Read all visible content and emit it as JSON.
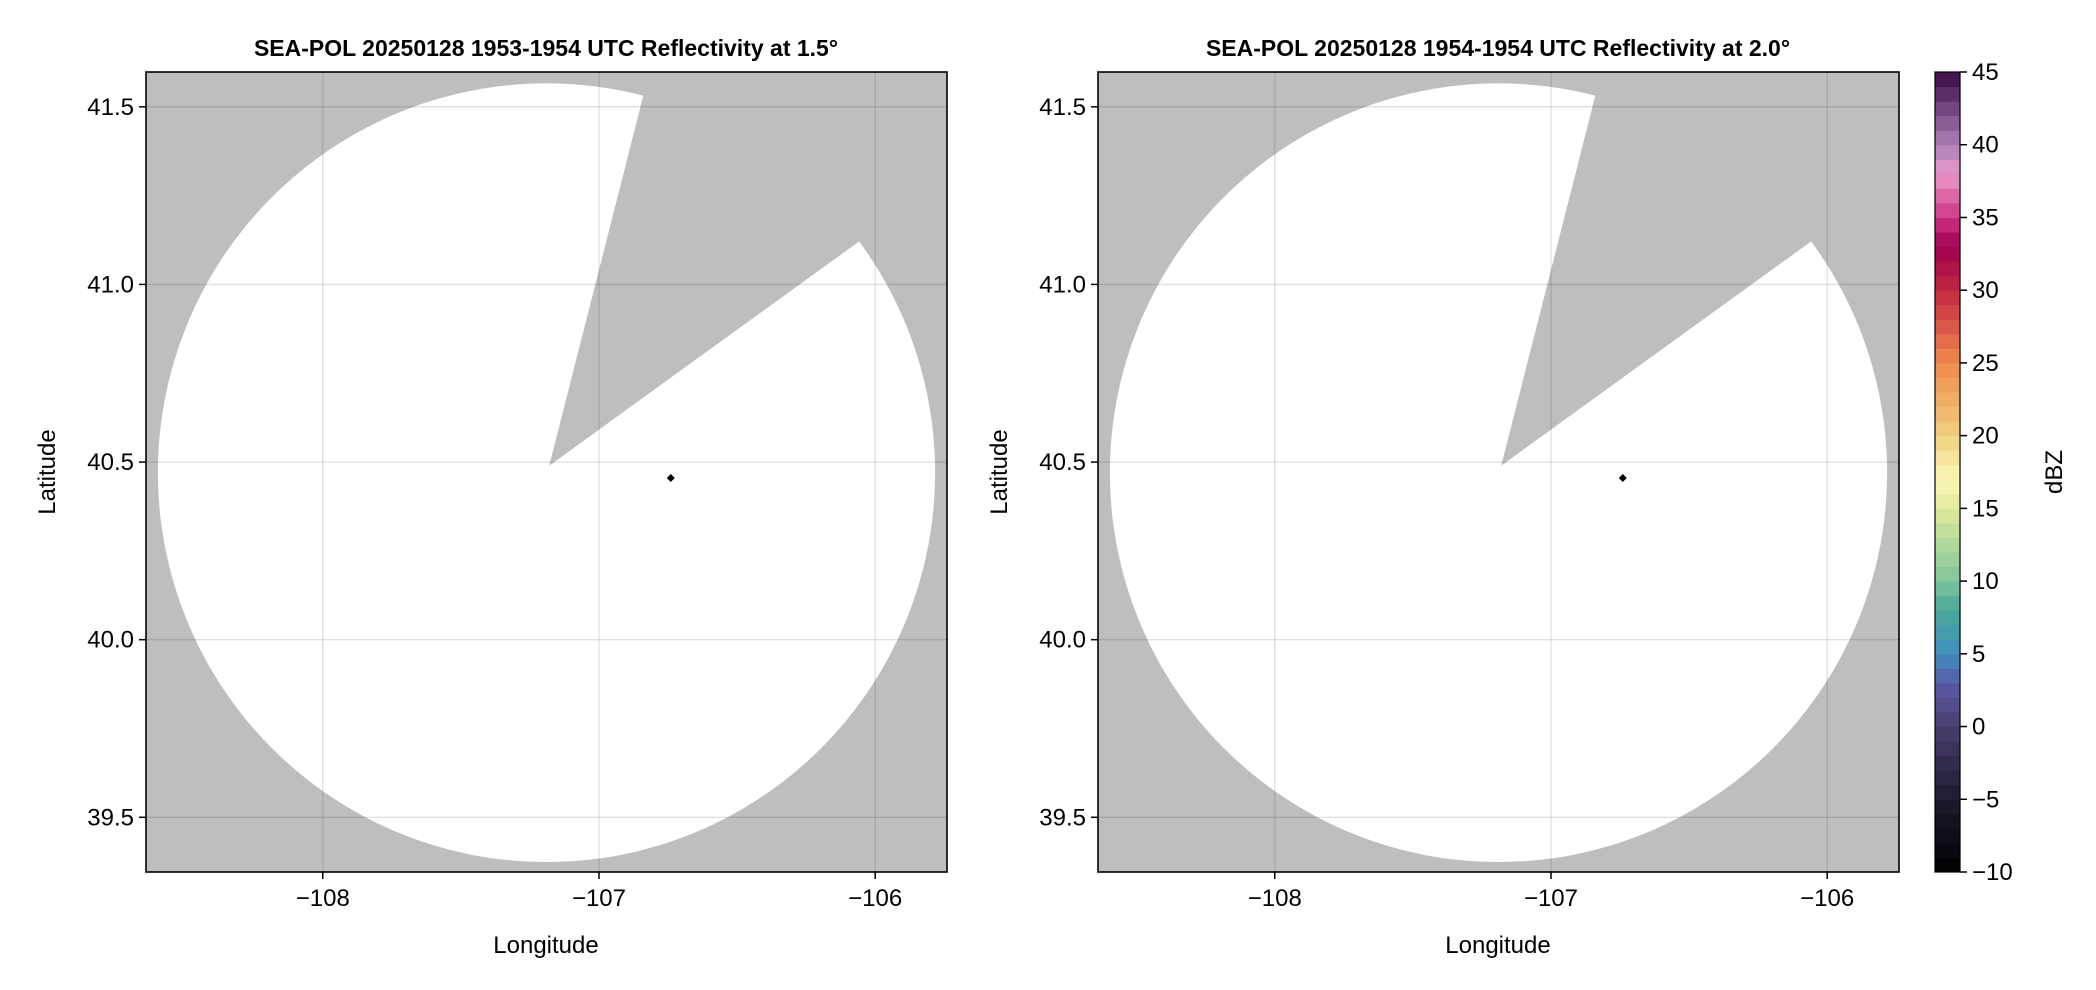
{
  "chart_data": [
    {
      "type": "heatmap",
      "title": "SEA-POL 20250128 1953-1954 UTC Reflectivity at 1.5°",
      "xlabel": "Longitude",
      "ylabel": "Latitude",
      "xlim": [
        -108.64,
        -105.74
      ],
      "ylim": [
        39.346,
        41.598
      ],
      "xticks": [
        -108,
        -107,
        -106
      ],
      "xtick_labels": [
        "−108",
        "−107",
        "−106"
      ],
      "yticks": [
        39.5,
        40.0,
        40.5,
        41.0,
        41.5
      ],
      "ytick_labels": [
        "39.5",
        "40.0",
        "40.5",
        "41.0",
        "41.5"
      ],
      "grid": true,
      "background_color": "#bebebe",
      "coverage_color": "#ffffff",
      "coverage_circle": {
        "center_lon": -107.19,
        "center_lat": 40.47,
        "radius_lon": 1.407,
        "radius_lat": 1.096
      },
      "blocked_sector": {
        "apex": [
          -107.18,
          40.49
        ],
        "edge1": [
          -106.84,
          41.53
        ],
        "edge2": [
          -106.06,
          41.12
        ]
      },
      "marker": {
        "lon": -106.74,
        "lat": 40.455,
        "shape": "diamond",
        "color": "#000000"
      }
    },
    {
      "type": "heatmap",
      "title": "SEA-POL 20250128 1954-1954 UTC Reflectivity at 2.0°",
      "xlabel": "Longitude",
      "ylabel": "Latitude",
      "xlim": [
        -108.64,
        -105.74
      ],
      "ylim": [
        39.346,
        41.598
      ],
      "xticks": [
        -108,
        -107,
        -106
      ],
      "xtick_labels": [
        "−108",
        "−107",
        "−106"
      ],
      "yticks": [
        39.5,
        40.0,
        40.5,
        41.0,
        41.5
      ],
      "ytick_labels": [
        "39.5",
        "40.0",
        "40.5",
        "41.0",
        "41.5"
      ],
      "grid": true,
      "background_color": "#bebebe",
      "coverage_color": "#ffffff",
      "coverage_circle": {
        "center_lon": -107.19,
        "center_lat": 40.47,
        "radius_lon": 1.407,
        "radius_lat": 1.096
      },
      "blocked_sector": {
        "apex": [
          -107.18,
          40.49
        ],
        "edge1": [
          -106.84,
          41.53
        ],
        "edge2": [
          -106.06,
          41.12
        ]
      },
      "marker": {
        "lon": -106.74,
        "lat": 40.455,
        "shape": "diamond",
        "color": "#000000"
      }
    }
  ],
  "colorbar": {
    "label": "dBZ",
    "range": [
      -10,
      45
    ],
    "step": 1,
    "ticks": [
      -10,
      -5,
      0,
      5,
      10,
      15,
      20,
      25,
      30,
      35,
      40,
      45
    ],
    "tick_labels": [
      "−10",
      "−5",
      "0",
      "5",
      "10",
      "15",
      "20",
      "25",
      "30",
      "35",
      "40",
      "45"
    ],
    "color_stops": [
      [
        -10,
        "#000000"
      ],
      [
        -5,
        "#1e1a2e"
      ],
      [
        0,
        "#4a3e70"
      ],
      [
        3,
        "#5a5aa8"
      ],
      [
        5,
        "#3f8fc0"
      ],
      [
        8,
        "#4aa898"
      ],
      [
        10,
        "#7ec59a"
      ],
      [
        15,
        "#e0eb9c"
      ],
      [
        17,
        "#fbf8b8"
      ],
      [
        20,
        "#f0d080"
      ],
      [
        25,
        "#ef8a4c"
      ],
      [
        30,
        "#c3283f"
      ],
      [
        33,
        "#9e0050"
      ],
      [
        35,
        "#cf3585"
      ],
      [
        38,
        "#e899c8"
      ],
      [
        40,
        "#ad80b8"
      ],
      [
        45,
        "#3a0a48"
      ]
    ]
  }
}
